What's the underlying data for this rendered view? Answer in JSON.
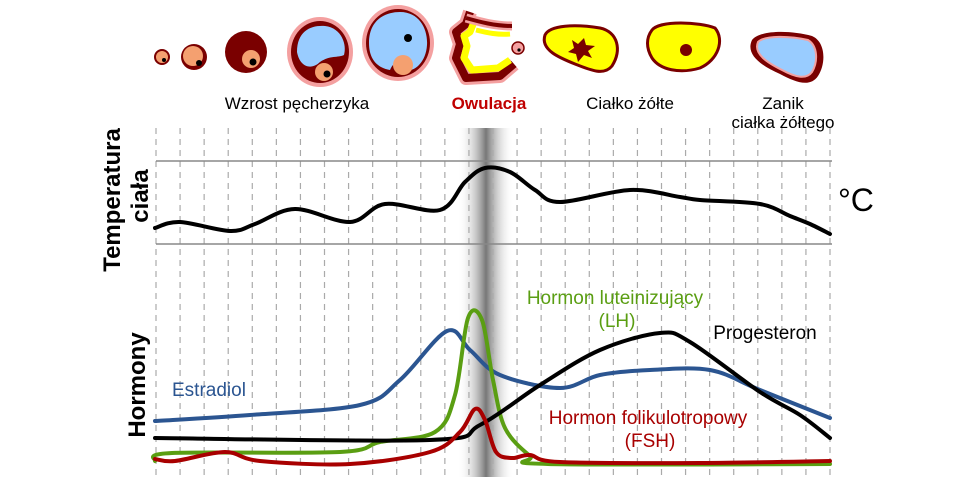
{
  "stages": {
    "growth": "Wzrost pęcherzyka",
    "ovulation": "Owulacja",
    "corpus_luteum": "Ciałko żółte",
    "regression_line1": "Zanik",
    "regression_line2": "ciałka żółtego"
  },
  "temperature": {
    "label_line1": "Temperatura",
    "label_line2": "ciała",
    "unit": "°C"
  },
  "hormones": {
    "label": "Hormony",
    "estradiol": "Estradiol",
    "lh_line1": "Hormon luteinizujący",
    "lh_line2": "(LH)",
    "progesterone": "Progesteron",
    "fsh_line1": "Hormon folikulotropowy",
    "fsh_line2": "(FSH)"
  },
  "colors": {
    "estradiol": "#2b5591",
    "lh": "#5a9e12",
    "progesterone": "#000000",
    "fsh": "#a80000",
    "ovulation": "#c00000",
    "follicle_dark": "#7a0000",
    "follicle_fluid": "#99ccff",
    "oocyte": "#f4a070",
    "corpus_luteum": "#ffff00"
  }
}
